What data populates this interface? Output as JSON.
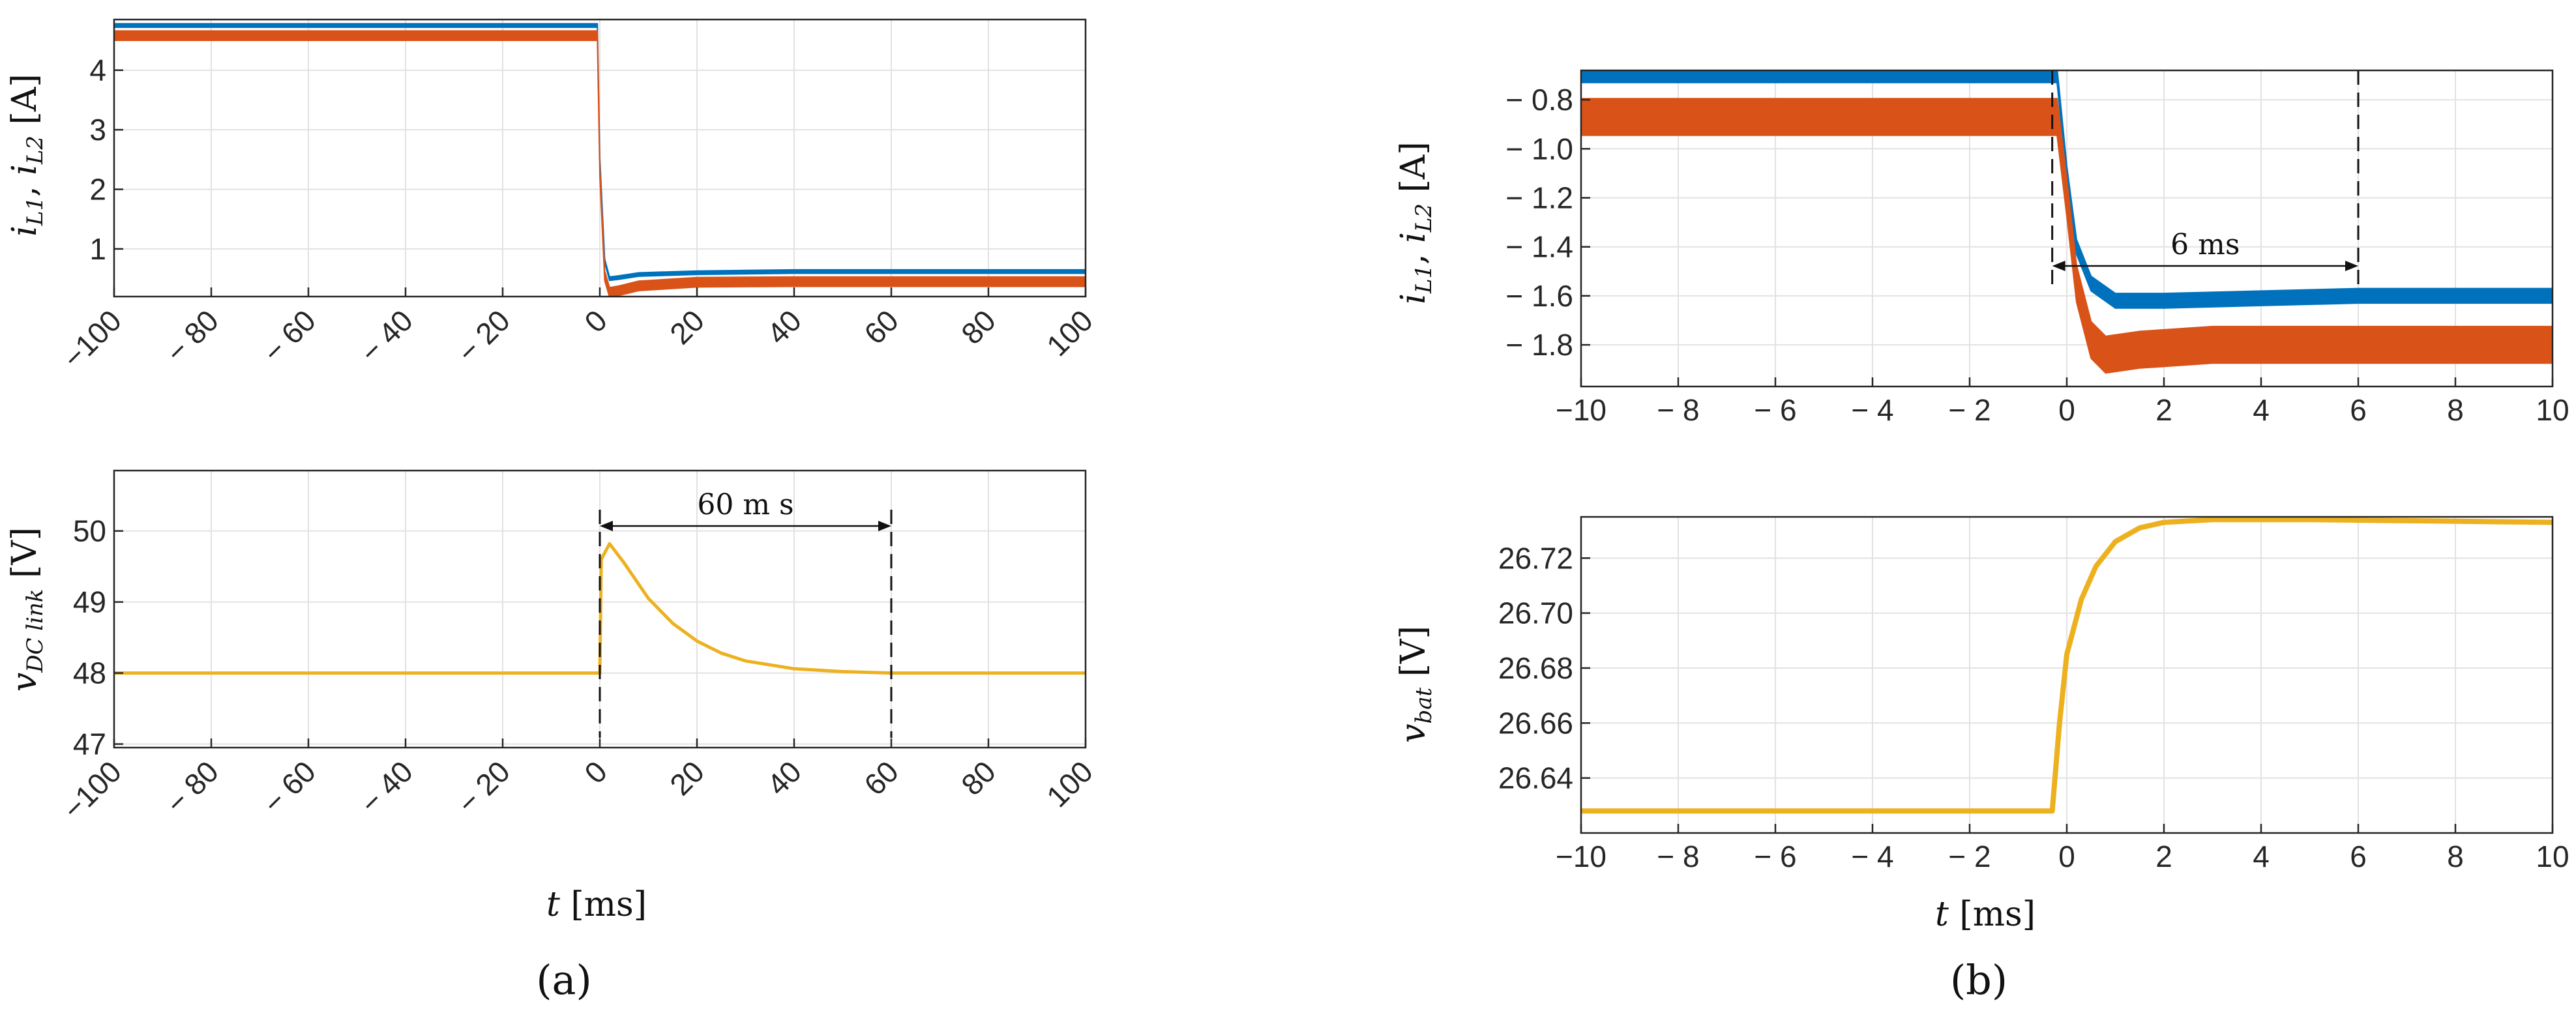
{
  "figure": {
    "panel_labels": [
      "(a)",
      "(b)"
    ]
  },
  "colors": {
    "iL1": "#0072BD",
    "iL2": "#D95319",
    "voltage": "#EDB120",
    "grid": "#e2e2e2",
    "axis": "#262626"
  },
  "chart_data": [
    {
      "type": "line",
      "panel": "(a)",
      "ylabel": "i_{L1}, i_{L2} [A]",
      "xlabel": "",
      "xlim": [
        -100,
        100
      ],
      "ylim": [
        0.2,
        4.85
      ],
      "xticks": [
        "−100",
        "− 80",
        "− 60",
        "− 40",
        "− 20",
        "0",
        "20",
        "40",
        "60",
        "80",
        "100"
      ],
      "xtick_values": [
        -100,
        -80,
        -60,
        -40,
        -20,
        0,
        20,
        40,
        60,
        80,
        100
      ],
      "yticks": [
        "1",
        "2",
        "3",
        "4"
      ],
      "ytick_values": [
        1,
        2,
        3,
        4
      ],
      "grid": true,
      "series": [
        {
          "color": "#0072BD",
          "x": [
            -100,
            -0.5,
            0,
            1,
            2,
            4,
            8,
            20,
            40,
            100
          ],
          "y": [
            4.75,
            4.75,
            2.5,
            0.8,
            0.5,
            0.52,
            0.57,
            0.6,
            0.62,
            0.62
          ],
          "band": 0.06
        },
        {
          "color": "#D95319",
          "x": [
            -100,
            -0.5,
            0,
            1,
            2,
            4,
            8,
            20,
            40,
            100
          ],
          "y": [
            4.58,
            4.58,
            2.3,
            0.55,
            0.27,
            0.3,
            0.38,
            0.44,
            0.45,
            0.45
          ],
          "band": 0.16
        }
      ]
    },
    {
      "type": "line",
      "panel": "(a)",
      "ylabel": "v_{DC link} [V]",
      "xlabel": "t [ms]",
      "xlim": [
        -100,
        100
      ],
      "ylim": [
        46.95,
        50.85
      ],
      "xticks": [
        "−100",
        "− 80",
        "− 60",
        "− 40",
        "− 20",
        "0",
        "20",
        "40",
        "60",
        "80",
        "100"
      ],
      "xtick_values": [
        -100,
        -80,
        -60,
        -40,
        -20,
        0,
        20,
        40,
        60,
        80,
        100
      ],
      "yticks": [
        "47",
        "48",
        "49",
        "50"
      ],
      "ytick_values": [
        47,
        48,
        49,
        50
      ],
      "grid": true,
      "series": [
        {
          "color": "#EDB120",
          "x": [
            -100,
            0,
            0.3,
            2,
            5,
            10,
            15,
            20,
            25,
            30,
            40,
            50,
            60,
            100
          ],
          "y": [
            48.0,
            48.0,
            49.6,
            49.82,
            49.55,
            49.05,
            48.7,
            48.45,
            48.28,
            48.17,
            48.06,
            48.02,
            48.0,
            48.0
          ]
        }
      ],
      "annotation": {
        "label": "60 m s",
        "x_start": 0,
        "x_end": 60
      }
    },
    {
      "type": "line",
      "panel": "(b)",
      "ylabel": "i_{L1}, i_{L2} [A]",
      "xlabel": "",
      "xlim": [
        -10,
        10
      ],
      "ylim": [
        -1.97,
        -0.68
      ],
      "xticks": [
        "−10",
        "− 8",
        "− 6",
        "− 4",
        "− 2",
        "0",
        "2",
        "4",
        "6",
        "8",
        "10"
      ],
      "xtick_values": [
        -10,
        -8,
        -6,
        -4,
        -2,
        0,
        2,
        4,
        6,
        8,
        10
      ],
      "yticks": [
        "− 0.8",
        "− 1.0",
        "− 1.2",
        "− 1.4",
        "− 1.6",
        "− 1.8"
      ],
      "ytick_values": [
        -0.8,
        -1.0,
        -1.2,
        -1.4,
        -1.6,
        -1.8
      ],
      "grid": true,
      "series": [
        {
          "color": "#0072BD",
          "x": [
            -10,
            -0.2,
            0,
            0.2,
            0.5,
            1,
            2,
            4,
            6,
            8,
            10
          ],
          "y": [
            -0.7,
            -0.7,
            -1.1,
            -1.4,
            -1.55,
            -1.62,
            -1.62,
            -1.61,
            -1.6,
            -1.6,
            -1.6
          ],
          "band": 0.06
        },
        {
          "color": "#D95319",
          "x": [
            -10,
            -0.2,
            0,
            0.2,
            0.5,
            0.8,
            1.5,
            3,
            6,
            10
          ],
          "y": [
            -0.87,
            -0.87,
            -1.2,
            -1.55,
            -1.78,
            -1.84,
            -1.82,
            -1.8,
            -1.8,
            -1.8
          ],
          "band": 0.15
        }
      ],
      "annotation": {
        "label": "6 ms",
        "x_start": -0.3,
        "x_end": 6
      }
    },
    {
      "type": "line",
      "panel": "(b)",
      "ylabel": "v_{bat} [V]",
      "xlabel": "t [ms]",
      "xlim": [
        -10,
        10
      ],
      "ylim": [
        26.62,
        26.735
      ],
      "xticks": [
        "−10",
        "− 8",
        "− 6",
        "− 4",
        "− 2",
        "0",
        "2",
        "4",
        "6",
        "8",
        "10"
      ],
      "xtick_values": [
        -10,
        -8,
        -6,
        -4,
        -2,
        0,
        2,
        4,
        6,
        8,
        10
      ],
      "yticks": [
        "26.64",
        "26.66",
        "26.68",
        "26.70",
        "26.72"
      ],
      "ytick_values": [
        26.64,
        26.66,
        26.68,
        26.7,
        26.72
      ],
      "grid": true,
      "series": [
        {
          "color": "#EDB120",
          "x": [
            -10,
            -0.3,
            -0.15,
            0,
            0.3,
            0.6,
            1,
            1.5,
            2,
            3,
            5,
            10
          ],
          "y": [
            26.628,
            26.628,
            26.66,
            26.685,
            26.705,
            26.717,
            26.726,
            26.731,
            26.733,
            26.734,
            26.734,
            26.733
          ]
        }
      ]
    }
  ]
}
